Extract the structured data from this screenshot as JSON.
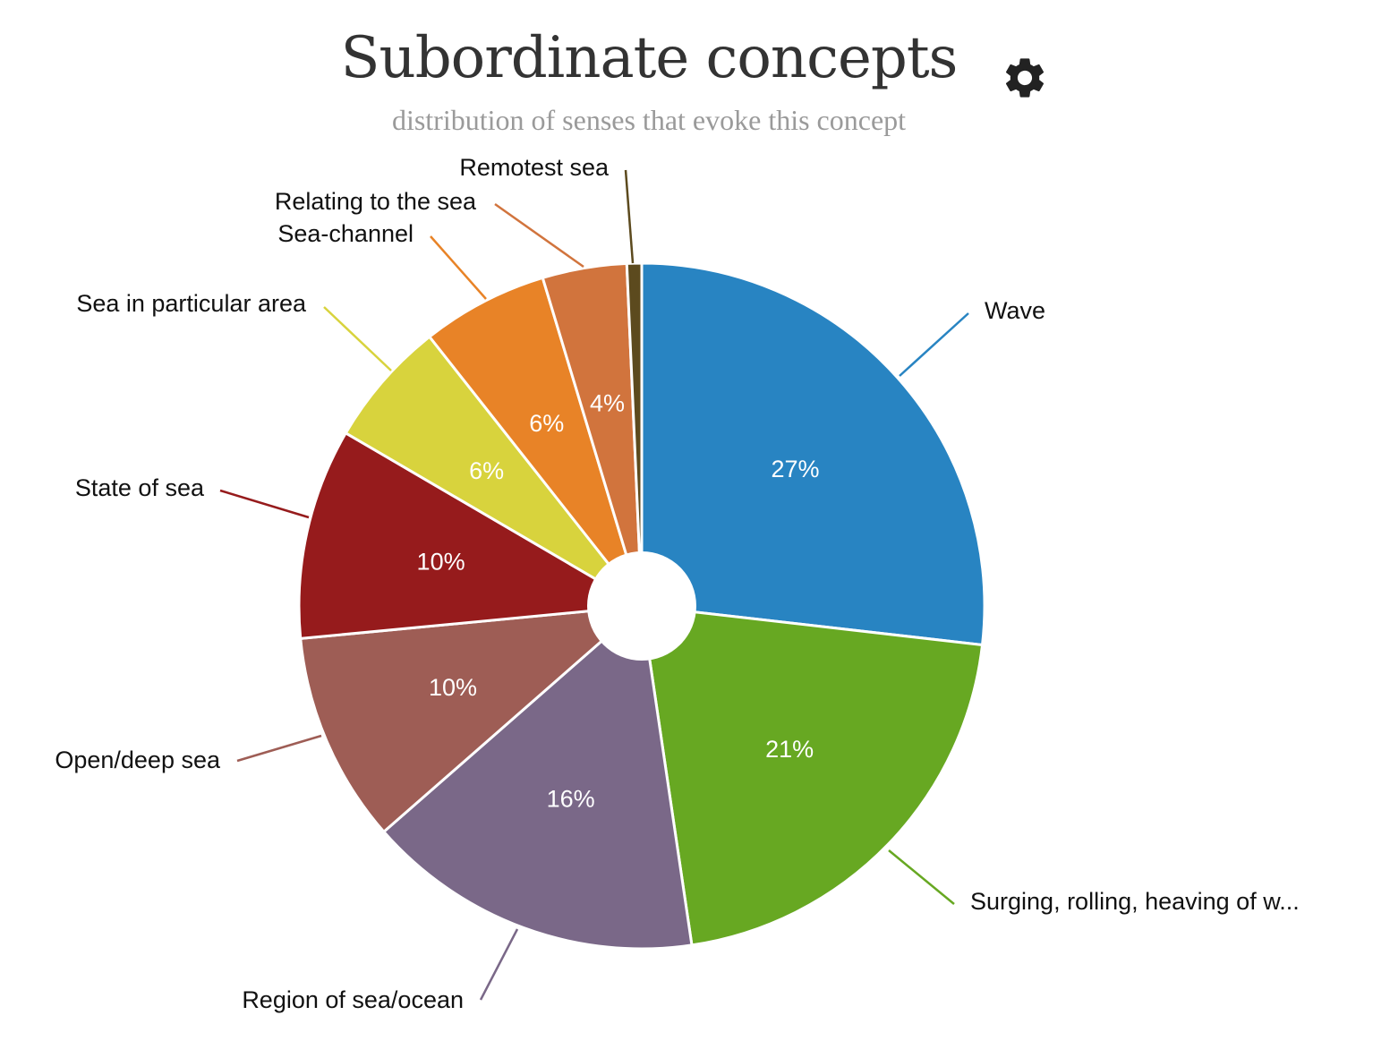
{
  "header": {
    "title": "Subordinate concepts",
    "subtitle": "distribution of senses that evoke this concept",
    "settings_icon": "gear-icon"
  },
  "chart_data": {
    "type": "pie",
    "title": "Subordinate concepts",
    "subtitle": "distribution of senses that evoke this concept",
    "series": [
      {
        "name": "",
        "slices": [
          {
            "label": "Wave",
            "value": 27,
            "display": "27%",
            "color": "#2884c2"
          },
          {
            "label": "Surging, rolling, heaving of w...",
            "value": 21,
            "display": "21%",
            "color": "#67a822"
          },
          {
            "label": "Region of sea/ocean",
            "value": 16,
            "display": "16%",
            "color": "#7a6888"
          },
          {
            "label": "Open/deep sea",
            "value": 10,
            "display": "10%",
            "color": "#9e5d55"
          },
          {
            "label": "State of sea",
            "value": 10,
            "display": "10%",
            "color": "#961b1c"
          },
          {
            "label": "Sea in particular area",
            "value": 6,
            "display": "6%",
            "color": "#d8d33d"
          },
          {
            "label": "Sea-channel",
            "value": 6,
            "display": "6%",
            "color": "#e88327"
          },
          {
            "label": "Relating to the sea",
            "value": 4,
            "display": "4%",
            "color": "#d1743d"
          },
          {
            "label": "Remotest sea",
            "value": 0.7,
            "display": "",
            "color": "#5c4a1e"
          }
        ]
      }
    ],
    "donut_hole": true
  }
}
